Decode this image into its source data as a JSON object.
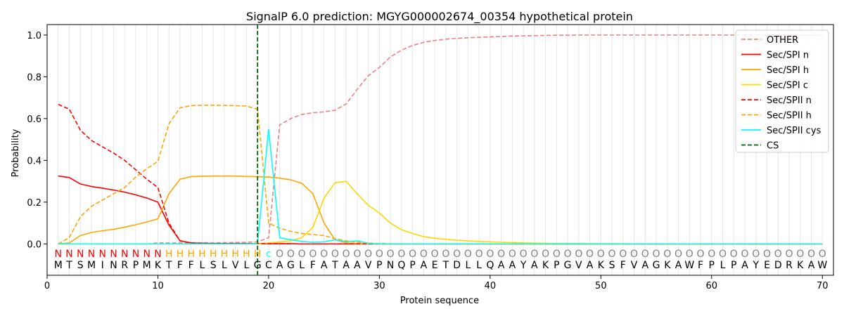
{
  "chart_data": {
    "type": "line",
    "title": "SignalP 6.0 prediction: MGYG000002674_00354 hypothetical protein",
    "xlabel": "Protein sequence",
    "ylabel": "Probability",
    "xlim": [
      0,
      71
    ],
    "ylim": [
      -0.15,
      1.05
    ],
    "xticks": [
      0,
      10,
      20,
      30,
      40,
      50,
      60,
      70
    ],
    "yticks": [
      0.0,
      0.2,
      0.4,
      0.6,
      0.8,
      1.0
    ],
    "ytick_labels": [
      "0.0",
      "0.2",
      "0.4",
      "0.6",
      "0.8",
      "1.0"
    ],
    "legend_position": "top-right",
    "sequence": "MTSMINRPMKTFFLSLVLGCAGLFATAAVPNQPAETDLLQAAYAKPGVAKSFVAGKAWFPLPAYEDRKAW",
    "annotation": "NNNNNNNNNNHHHHHHHHHcOOOOOOOOOOOOOOOOOOOOOOOOOOOOOOOOOOOOOOOOOOOOOOOOOO",
    "annotation_colors": {
      "N": "#ff0000",
      "H": "#ffa500",
      "c": "#00ffff",
      "O": "#808080"
    },
    "cleavage_site": 19,
    "series": [
      {
        "name": "OTHER",
        "color": "#f08080",
        "dash": true,
        "values": [
          0.0,
          0.0,
          0.0,
          0.0,
          0.0,
          0.0,
          0.0,
          0.0,
          0.0,
          0.005,
          0.005,
          0.005,
          0.005,
          0.005,
          0.005,
          0.006,
          0.007,
          0.008,
          0.01,
          0.03,
          0.57,
          0.6,
          0.62,
          0.628,
          0.632,
          0.64,
          0.67,
          0.74,
          0.805,
          0.845,
          0.895,
          0.928,
          0.95,
          0.965,
          0.974,
          0.98,
          0.984,
          0.987,
          0.989,
          0.991,
          0.993,
          0.995,
          0.996,
          0.997,
          0.998,
          0.999,
          0.999,
          1.0,
          1.0,
          1.0,
          1.0,
          1.0,
          1.0,
          1.0,
          1.0,
          1.0,
          1.0,
          1.0,
          1.0,
          1.0,
          1.0,
          1.0,
          1.0,
          1.0,
          1.0,
          1.0,
          1.0,
          1.0,
          1.0,
          1.0
        ]
      },
      {
        "name": "Sec/SPI n",
        "color": "#ff0000",
        "dash": false,
        "values": [
          0.325,
          0.318,
          0.287,
          0.275,
          0.267,
          0.258,
          0.248,
          0.235,
          0.22,
          0.2,
          0.09,
          0.015,
          0.005,
          0.003,
          0.002,
          0.002,
          0.002,
          0.002,
          0.002,
          0.001,
          0.001,
          0.001,
          0.0,
          0.0,
          0.0,
          0.0,
          0.0,
          0.0,
          0.0,
          0.0,
          0.0,
          0.0,
          0.0,
          0.0,
          0.0,
          0.0,
          0.0,
          0.0,
          0.0,
          0.0,
          0.0,
          0.0,
          0.0,
          0.0,
          0.0,
          0.0,
          0.0,
          0.0,
          0.0,
          0.0,
          0.0,
          0.0,
          0.0,
          0.0,
          0.0,
          0.0,
          0.0,
          0.0,
          0.0,
          0.0,
          0.0,
          0.0,
          0.0,
          0.0,
          0.0,
          0.0,
          0.0,
          0.0,
          0.0,
          0.0
        ]
      },
      {
        "name": "Sec/SPI h",
        "color": "#ffa500",
        "dash": false,
        "values": [
          0.0,
          0.005,
          0.04,
          0.055,
          0.063,
          0.07,
          0.08,
          0.092,
          0.105,
          0.12,
          0.24,
          0.31,
          0.322,
          0.324,
          0.325,
          0.325,
          0.325,
          0.323,
          0.322,
          0.32,
          0.315,
          0.307,
          0.29,
          0.24,
          0.1,
          0.02,
          0.005,
          0.002,
          0.0,
          0.0,
          0.0,
          0.0,
          0.0,
          0.0,
          0.0,
          0.0,
          0.0,
          0.0,
          0.0,
          0.0,
          0.0,
          0.0,
          0.0,
          0.0,
          0.0,
          0.0,
          0.0,
          0.0,
          0.0,
          0.0,
          0.0,
          0.0,
          0.0,
          0.0,
          0.0,
          0.0,
          0.0,
          0.0,
          0.0,
          0.0,
          0.0,
          0.0,
          0.0,
          0.0,
          0.0,
          0.0,
          0.0,
          0.0,
          0.0,
          0.0
        ]
      },
      {
        "name": "Sec/SPI c",
        "color": "#ffd700",
        "dash": false,
        "values": [
          0.0,
          0.0,
          0.0,
          0.0,
          0.0,
          0.0,
          0.0,
          0.0,
          0.0,
          0.0,
          0.0,
          0.0,
          0.0,
          0.0,
          0.0,
          0.0,
          0.0,
          0.0,
          0.0,
          0.005,
          0.01,
          0.015,
          0.03,
          0.08,
          0.22,
          0.293,
          0.3,
          0.24,
          0.185,
          0.148,
          0.1,
          0.068,
          0.05,
          0.035,
          0.027,
          0.022,
          0.018,
          0.015,
          0.012,
          0.01,
          0.008,
          0.006,
          0.005,
          0.004,
          0.003,
          0.002,
          0.002,
          0.002,
          0.001,
          0.001,
          0.001,
          0.001,
          0.0,
          0.0,
          0.0,
          0.0,
          0.0,
          0.0,
          0.0,
          0.0,
          0.0,
          0.0,
          0.0,
          0.0,
          0.0,
          0.0,
          0.0,
          0.0,
          0.0,
          0.0
        ]
      },
      {
        "name": "Sec/SPII n",
        "color": "#ff0000",
        "dash": true,
        "values": [
          0.668,
          0.645,
          0.545,
          0.495,
          0.465,
          0.435,
          0.4,
          0.355,
          0.31,
          0.27,
          0.1,
          0.015,
          0.005,
          0.003,
          0.002,
          0.002,
          0.002,
          0.002,
          0.002,
          0.001,
          0.001,
          0.001,
          0.0,
          0.0,
          0.0,
          0.0,
          0.0,
          0.0,
          0.0,
          0.0,
          0.0,
          0.0,
          0.0,
          0.0,
          0.0,
          0.0,
          0.0,
          0.0,
          0.0,
          0.0,
          0.0,
          0.0,
          0.0,
          0.0,
          0.0,
          0.0,
          0.0,
          0.0,
          0.0,
          0.0,
          0.0,
          0.0,
          0.0,
          0.0,
          0.0,
          0.0,
          0.0,
          0.0,
          0.0,
          0.0,
          0.0,
          0.0,
          0.0,
          0.0,
          0.0,
          0.0,
          0.0,
          0.0,
          0.0,
          0.0
        ]
      },
      {
        "name": "Sec/SPII h",
        "color": "#ffa500",
        "dash": true,
        "values": [
          0.0,
          0.03,
          0.13,
          0.18,
          0.21,
          0.24,
          0.27,
          0.32,
          0.36,
          0.395,
          0.575,
          0.652,
          0.662,
          0.664,
          0.664,
          0.663,
          0.662,
          0.66,
          0.645,
          0.1,
          0.075,
          0.06,
          0.05,
          0.045,
          0.04,
          0.025,
          0.015,
          0.008,
          0.004,
          0.002,
          0.001,
          0.0,
          0.0,
          0.0,
          0.0,
          0.0,
          0.0,
          0.0,
          0.0,
          0.0,
          0.0,
          0.0,
          0.0,
          0.0,
          0.0,
          0.0,
          0.0,
          0.0,
          0.0,
          0.0,
          0.0,
          0.0,
          0.0,
          0.0,
          0.0,
          0.0,
          0.0,
          0.0,
          0.0,
          0.0,
          0.0,
          0.0,
          0.0,
          0.0,
          0.0,
          0.0,
          0.0,
          0.0,
          0.0,
          0.0
        ]
      },
      {
        "name": "Sec/SPII cys",
        "color": "#00ffff",
        "dash": false,
        "values": [
          0.0,
          0.0,
          0.0,
          0.0,
          0.0,
          0.0,
          0.0,
          0.0,
          0.0,
          0.0,
          0.0,
          0.0,
          0.0,
          0.0,
          0.0,
          0.0,
          0.0,
          0.0,
          0.002,
          0.548,
          0.03,
          0.02,
          0.012,
          0.008,
          0.01,
          0.02,
          0.01,
          0.015,
          0.003,
          0.0,
          0.0,
          0.0,
          0.0,
          0.0,
          0.0,
          0.0,
          0.0,
          0.0,
          0.0,
          0.0,
          0.0,
          0.0,
          0.0,
          0.0,
          0.0,
          0.0,
          0.0,
          0.0,
          0.0,
          0.0,
          0.0,
          0.0,
          0.0,
          0.0,
          0.0,
          0.0,
          0.0,
          0.0,
          0.0,
          0.0,
          0.0,
          0.0,
          0.0,
          0.0,
          0.0,
          0.0,
          0.0,
          0.0,
          0.0,
          0.0
        ]
      },
      {
        "name": "CS",
        "color": "#006400",
        "dash": true,
        "values": []
      }
    ]
  }
}
